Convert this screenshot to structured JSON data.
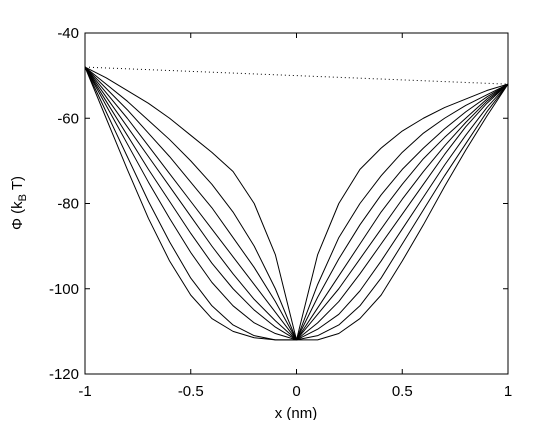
{
  "chart_data": {
    "type": "line",
    "title": "",
    "xlabel": "x (nm)",
    "ylabel": {
      "prefix": "Φ (k",
      "subscript": "B",
      "suffix": " T)"
    },
    "xlim": [
      -1,
      1
    ],
    "ylim": [
      -120,
      -40
    ],
    "xticks": [
      -1,
      -0.5,
      0,
      0.5,
      1
    ],
    "xtick_labels": [
      "-1",
      "-0.5",
      "0",
      "0.5",
      "1"
    ],
    "yticks": [
      -40,
      -60,
      -80,
      -100,
      -120
    ],
    "ytick_labels": [
      "-40",
      "-60",
      "-80",
      "-100",
      "-120"
    ],
    "grid": false,
    "line_color": "#000000",
    "series": [
      {
        "style": "dotted",
        "x": [
          -1,
          1
        ],
        "y": [
          -48,
          -52
        ]
      },
      {
        "style": "solid",
        "x": [
          -1,
          -0.9,
          -0.8,
          -0.7,
          -0.6,
          -0.5,
          -0.4,
          -0.3,
          -0.2,
          -0.1,
          0,
          0.1,
          0.2,
          0.3,
          0.4,
          0.5,
          0.6,
          0.7,
          0.8,
          0.9,
          1
        ],
        "y": [
          -48,
          -50.5,
          -53.5,
          -56.5,
          -60,
          -64,
          -68,
          -72.5,
          -80,
          -92,
          -112,
          -92,
          -80,
          -72,
          -67,
          -63,
          -60,
          -57.5,
          -55.5,
          -53.5,
          -52
        ]
      },
      {
        "style": "solid",
        "x": [
          -1,
          -0.9,
          -0.8,
          -0.7,
          -0.6,
          -0.5,
          -0.4,
          -0.3,
          -0.2,
          -0.1,
          0,
          0.1,
          0.2,
          0.3,
          0.4,
          0.5,
          0.6,
          0.7,
          0.8,
          0.9,
          1
        ],
        "y": [
          -48,
          -52,
          -56,
          -60.5,
          -65,
          -70,
          -75.5,
          -82,
          -90,
          -100,
          -112,
          -99,
          -88,
          -80,
          -73.5,
          -68,
          -63.5,
          -60,
          -57,
          -54.5,
          -52
        ]
      },
      {
        "style": "solid",
        "x": [
          -1,
          -0.9,
          -0.8,
          -0.7,
          -0.6,
          -0.5,
          -0.4,
          -0.3,
          -0.2,
          -0.1,
          0,
          0.1,
          0.2,
          0.3,
          0.4,
          0.5,
          0.6,
          0.7,
          0.8,
          0.9,
          1
        ],
        "y": [
          -48,
          -53,
          -58,
          -63.5,
          -69,
          -75,
          -81,
          -88,
          -95,
          -103,
          -112,
          -102,
          -93,
          -85,
          -78,
          -72,
          -67,
          -62.5,
          -58.5,
          -55,
          -52
        ]
      },
      {
        "style": "solid",
        "x": [
          -1,
          -0.9,
          -0.8,
          -0.7,
          -0.6,
          -0.5,
          -0.4,
          -0.3,
          -0.2,
          -0.1,
          0,
          0.1,
          0.2,
          0.3,
          0.4,
          0.5,
          0.6,
          0.7,
          0.8,
          0.9,
          1
        ],
        "y": [
          -48,
          -54,
          -60,
          -66.5,
          -73,
          -79.5,
          -86,
          -92.5,
          -99,
          -105.5,
          -112,
          -104.5,
          -97,
          -89.5,
          -82,
          -75.5,
          -69.5,
          -64.5,
          -60,
          -55.5,
          -52
        ]
      },
      {
        "style": "solid",
        "x": [
          -1,
          -0.9,
          -0.8,
          -0.7,
          -0.6,
          -0.5,
          -0.4,
          -0.3,
          -0.2,
          -0.1,
          0,
          0.1,
          0.2,
          0.3,
          0.4,
          0.5,
          0.6,
          0.7,
          0.8,
          0.9,
          1
        ],
        "y": [
          -48,
          -55,
          -62,
          -69,
          -76,
          -83,
          -90,
          -96.5,
          -102.5,
          -107.5,
          -112,
          -106,
          -100,
          -93,
          -86,
          -79,
          -72.5,
          -66.5,
          -61,
          -56,
          -52
        ]
      },
      {
        "style": "solid",
        "x": [
          -1,
          -0.9,
          -0.8,
          -0.7,
          -0.6,
          -0.5,
          -0.4,
          -0.3,
          -0.2,
          -0.1,
          0,
          0.1,
          0.2,
          0.3,
          0.4,
          0.5,
          0.6,
          0.7,
          0.8,
          0.9,
          1
        ],
        "y": [
          -48,
          -56,
          -64,
          -72,
          -79.5,
          -87,
          -94,
          -100,
          -105,
          -109,
          -112,
          -108,
          -103,
          -96.5,
          -89.5,
          -82.5,
          -75.5,
          -68.5,
          -62,
          -56.5,
          -52
        ]
      },
      {
        "style": "solid",
        "x": [
          -1,
          -0.9,
          -0.8,
          -0.7,
          -0.6,
          -0.5,
          -0.4,
          -0.3,
          -0.2,
          -0.1,
          0,
          0.1,
          0.2,
          0.3,
          0.4,
          0.5,
          0.6,
          0.7,
          0.8,
          0.9,
          1
        ],
        "y": [
          -48,
          -57,
          -66,
          -75,
          -83.5,
          -91.5,
          -98.5,
          -104,
          -108,
          -110.5,
          -112,
          -109.5,
          -106,
          -100.5,
          -93.5,
          -86,
          -78.5,
          -71,
          -64,
          -57.5,
          -52
        ]
      },
      {
        "style": "solid",
        "x": [
          -1,
          -0.9,
          -0.8,
          -0.7,
          -0.6,
          -0.5,
          -0.4,
          -0.3,
          -0.2,
          -0.1,
          0,
          0.1,
          0.2,
          0.3,
          0.4,
          0.5,
          0.6,
          0.7,
          0.8,
          0.9,
          1
        ],
        "y": [
          -48,
          -58.5,
          -69,
          -79.5,
          -89,
          -97.5,
          -104,
          -108.5,
          -111,
          -112,
          -112,
          -111,
          -108.5,
          -104,
          -97.5,
          -89.5,
          -81.5,
          -73.5,
          -66,
          -58.5,
          -52
        ]
      },
      {
        "style": "solid",
        "x": [
          -1,
          -0.9,
          -0.8,
          -0.7,
          -0.6,
          -0.5,
          -0.4,
          -0.3,
          -0.2,
          -0.1,
          0,
          0.1,
          0.2,
          0.3,
          0.4,
          0.5,
          0.6,
          0.7,
          0.8,
          0.9,
          1
        ],
        "y": [
          -48,
          -60,
          -72,
          -83.5,
          -93.5,
          -101.5,
          -107,
          -110,
          -111.5,
          -112,
          -112,
          -112,
          -110.5,
          -107,
          -101.5,
          -93.5,
          -85,
          -76,
          -67.5,
          -59.5,
          -52
        ]
      }
    ]
  }
}
